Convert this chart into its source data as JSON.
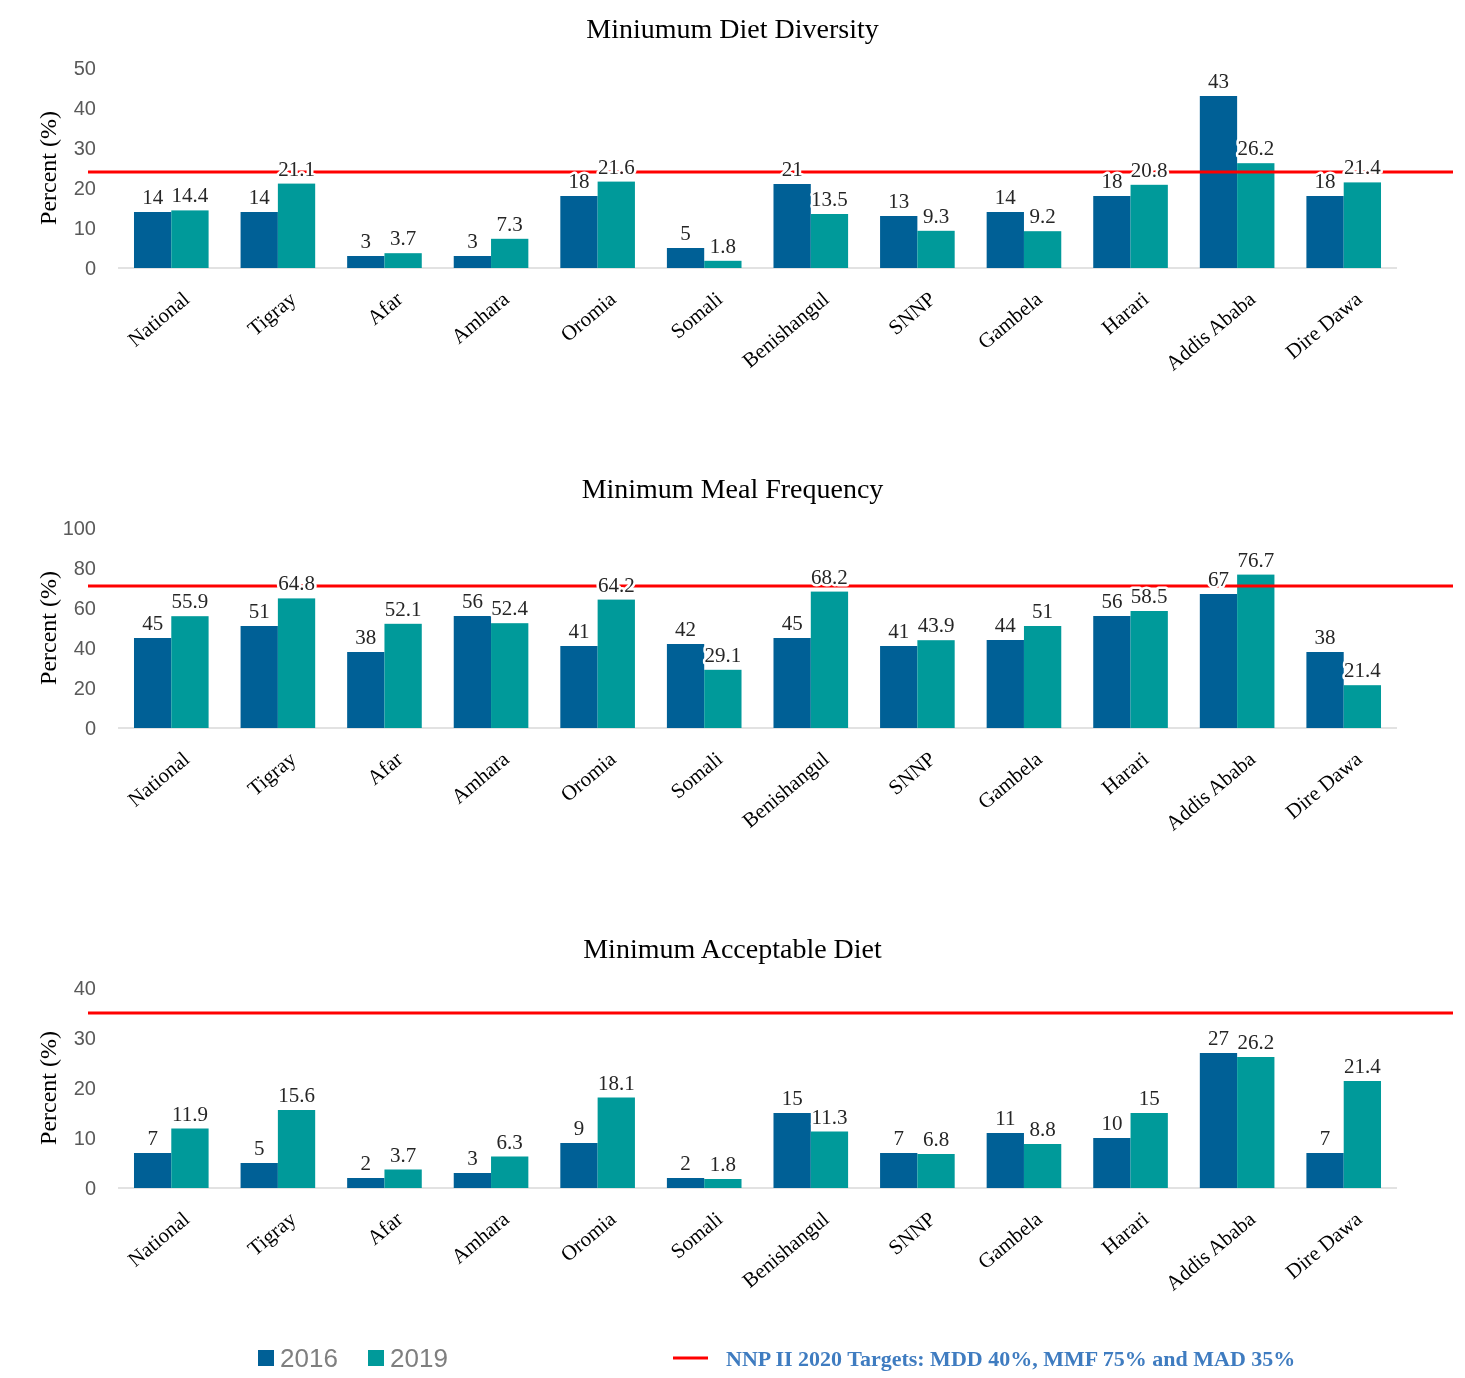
{
  "chart_data": [
    {
      "type": "bar",
      "title": "Miniumum Diet Diversity",
      "ylabel": "Percent (%)",
      "categories": [
        "National",
        "Tigray",
        "Afar",
        "Amhara",
        "Oromia",
        "Somali",
        "Benishangul",
        "SNNP",
        "Gambela",
        "Harari",
        "Addis Ababa",
        "Dire Dawa"
      ],
      "series": [
        {
          "color": "#006096",
          "values": [
            14,
            14,
            3,
            3,
            18,
            5,
            21,
            13,
            14,
            18,
            43,
            18
          ]
        },
        {
          "color": "#009a9a",
          "values": [
            14.4,
            21.1,
            3.7,
            7.3,
            21.6,
            1.8,
            13.5,
            9.3,
            9.2,
            20.8,
            26.2,
            21.4
          ]
        }
      ],
      "ylim": [
        0,
        50
      ],
      "yticks": [
        0,
        10,
        20,
        30,
        40,
        50
      ],
      "grid": false,
      "data_labels": true,
      "legend": false,
      "ref_lines": [
        {
          "axis": "y",
          "value": 24,
          "color": "#ff0000"
        }
      ]
    },
    {
      "type": "bar",
      "title": "Minimum Meal Frequency",
      "ylabel": "Percent (%)",
      "categories": [
        "National",
        "Tigray",
        "Afar",
        "Amhara",
        "Oromia",
        "Somali",
        "Benishangul",
        "SNNP",
        "Gambela",
        "Harari",
        "Addis Ababa",
        "Dire Dawa"
      ],
      "series": [
        {
          "color": "#006096",
          "values": [
            45,
            51,
            38,
            56,
            41,
            42,
            45,
            41,
            44,
            56,
            67,
            38
          ]
        },
        {
          "color": "#009a9a",
          "values": [
            55.9,
            64.8,
            52.1,
            52.4,
            64.2,
            29.1,
            68.2,
            43.9,
            51,
            58.5,
            76.7,
            21.4
          ]
        }
      ],
      "ylim": [
        0,
        100
      ],
      "yticks": [
        0,
        20,
        40,
        60,
        80,
        100
      ],
      "grid": false,
      "data_labels": true,
      "legend": false,
      "ref_lines": [
        {
          "axis": "y",
          "value": 71,
          "color": "#ff0000"
        }
      ]
    },
    {
      "type": "bar",
      "title": "Minimum Acceptable Diet",
      "ylabel": "Percent (%)",
      "categories": [
        "National",
        "Tigray",
        "Afar",
        "Amhara",
        "Oromia",
        "Somali",
        "Benishangul",
        "SNNP",
        "Gambela",
        "Harari",
        "Addis Ababa",
        "Dire Dawa"
      ],
      "series": [
        {
          "name": "2016",
          "color": "#006096",
          "values": [
            7,
            5,
            2,
            3,
            9,
            2,
            15,
            7,
            11,
            10,
            27,
            7
          ]
        },
        {
          "name": "2019",
          "color": "#009a9a",
          "values": [
            11.9,
            15.6,
            3.7,
            6.3,
            18.1,
            1.8,
            11.3,
            6.8,
            8.8,
            15,
            26.2,
            21.4
          ]
        }
      ],
      "ylim": [
        0,
        40
      ],
      "yticks": [
        0,
        10,
        20,
        30,
        40
      ],
      "grid": false,
      "data_labels": true,
      "legend": "bottom",
      "ref_lines": [
        {
          "axis": "y",
          "value": 35,
          "color": "#ff0000",
          "label": "NNP II 2020 Targets: MDD 40%, MMF 75% and MAD 35%"
        }
      ]
    }
  ]
}
